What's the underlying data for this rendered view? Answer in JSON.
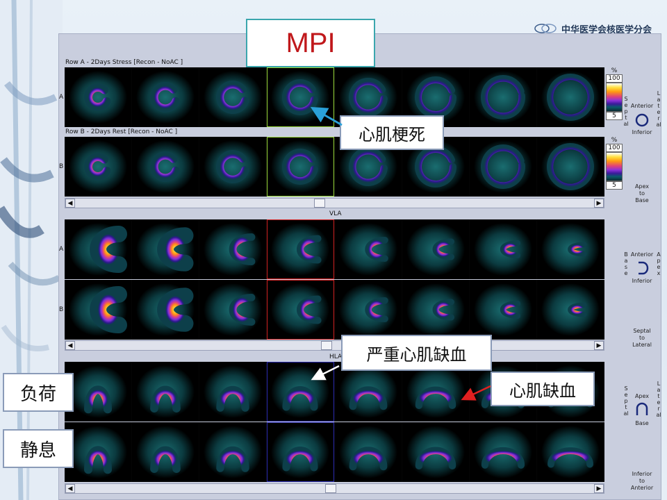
{
  "title": "MPI",
  "society": "中华医学会核医学分会",
  "sections": {
    "row_a_caption": "Row A - 2Days Stress [Recon - NoAC ]",
    "row_b_caption": "Row B - 2Days Rest [Recon - NoAC ]",
    "row_letter_a": "A",
    "row_letter_b": "B",
    "vla_label": "VLA",
    "hla_label": "HLA"
  },
  "colorbar": {
    "unit": "%",
    "max": "100",
    "min": "5"
  },
  "orientation": {
    "sa_anterior": "Anterior",
    "sa_inferior": "Inferior",
    "sa_septal": "Septal",
    "sa_lateral": "Lateral",
    "sa_apex_to_base": [
      "Apex",
      "to",
      "Base"
    ],
    "vla_base": "Base",
    "vla_anterior": "Anterior",
    "vla_inferior": "Inferior",
    "vla_apex": "Apex",
    "vla_septal_to_lateral": [
      "Septal",
      "to",
      "Lateral"
    ],
    "hla_septal": "Septal",
    "hla_apex": "Apex",
    "hla_base": "Base",
    "hla_lateral": "Lateral",
    "hla_inferior_to_anterior": [
      "Inferior",
      "to",
      "Anterior"
    ]
  },
  "callouts": {
    "infarction": "心肌梗死",
    "severe_ischemia": "严重心肌缺血",
    "ischemia": "心肌缺血"
  },
  "side_labels": {
    "stress": "负荷",
    "rest": "静息"
  },
  "scroll_arrows": {
    "left": "◀",
    "right": "▶"
  },
  "colors": {
    "title_text": "#c0181b",
    "title_border": "#3aa6ad",
    "arrow_infarction": "#2aa0d8",
    "arrow_severe": "#ffffff",
    "arrow_ischemia": "#e02020"
  }
}
